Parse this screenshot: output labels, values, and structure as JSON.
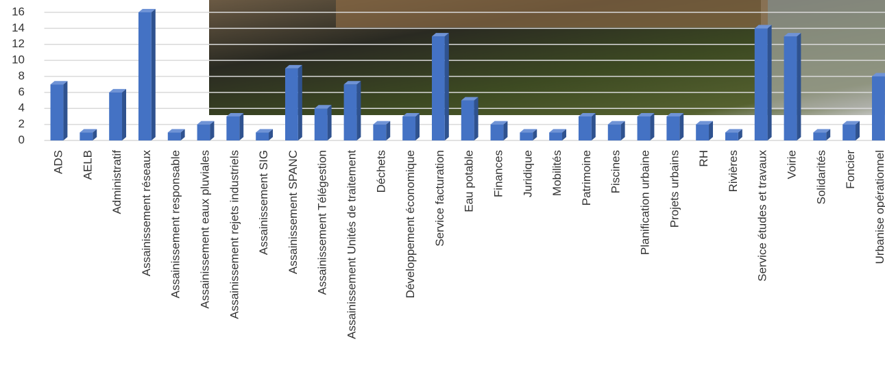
{
  "chart_data": {
    "type": "bar",
    "categories": [
      "ADS",
      "AELB",
      "Administratif",
      "Assainissement réseaux",
      "Assainissement responsable",
      "Assainissement eaux pluviales",
      "Assainissement rejets industriels",
      "Assainissement SIG",
      "Assainissement SPANC",
      "Assainissement Télégestion",
      "Assainissement Unités de traitement",
      "Déchets",
      "Développement économique",
      "Service facturation",
      "Eau potable",
      "Finances",
      "Juridique",
      "Mobilités",
      "Patrimoine",
      "Piscines",
      "Planification urbaine",
      "Projets urbains",
      "RH",
      "Rivières",
      "Service études et travaux",
      "Voirie",
      "Solidarités",
      "Foncier",
      "Urbanise opérationnel"
    ],
    "values": [
      7,
      1,
      6,
      16,
      1,
      2,
      3,
      1,
      9,
      4,
      7,
      2,
      3,
      13,
      5,
      2,
      1,
      1,
      3,
      2,
      3,
      3,
      2,
      1,
      14,
      13,
      1,
      2,
      8
    ],
    "color": "#4472c4",
    "ylim": [
      0,
      16
    ],
    "yticks": [
      0,
      2,
      4,
      6,
      8,
      10,
      12,
      14,
      16
    ],
    "grid": true
  }
}
